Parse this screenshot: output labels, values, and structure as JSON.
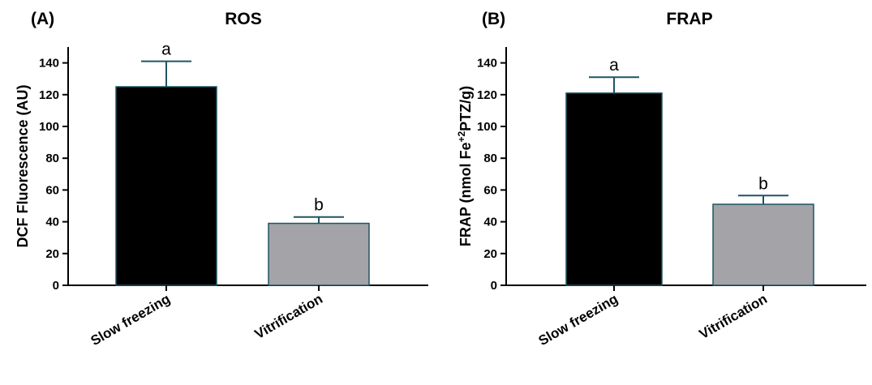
{
  "chart_data": [
    {
      "type": "bar",
      "panel_label": "(A)",
      "title": "ROS",
      "ylabel": "DCF Fluorescence (AU)",
      "categories": [
        "Slow freezing",
        "Vitrification"
      ],
      "values": [
        125,
        39
      ],
      "error": [
        16,
        4
      ],
      "significance": [
        "a",
        "b"
      ],
      "bar_colors": [
        "#000000",
        "#a3a3a8"
      ],
      "error_color": "#1f5563",
      "ylim": [
        0,
        150
      ],
      "yticks": [
        0,
        20,
        40,
        60,
        80,
        100,
        120,
        140
      ],
      "grid": false
    },
    {
      "type": "bar",
      "panel_label": "(B)",
      "title": "FRAP",
      "ylabel_parts": [
        "FRAP (nmol Fe",
        "+2",
        "PTZ/g)"
      ],
      "categories": [
        "Slow freezing",
        "Vitrification"
      ],
      "values": [
        121,
        51
      ],
      "error": [
        10,
        5.5
      ],
      "significance": [
        "a",
        "b"
      ],
      "bar_colors": [
        "#000000",
        "#a3a3a8"
      ],
      "error_color": "#1f5563",
      "ylim": [
        0,
        150
      ],
      "yticks": [
        0,
        20,
        40,
        60,
        80,
        100,
        120,
        140
      ],
      "grid": false
    }
  ]
}
